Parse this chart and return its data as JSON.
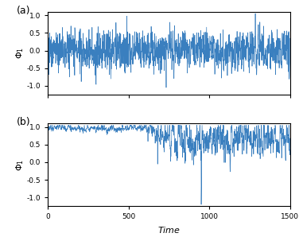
{
  "title_a": "(a)",
  "title_b": "(b)",
  "xlabel": "Time",
  "ylabel": "$\\Phi_1$",
  "xlim": [
    0,
    1500
  ],
  "ylim_a": [
    -1.25,
    1.1
  ],
  "ylim_b": [
    -1.25,
    1.1
  ],
  "xticks": [
    0,
    500,
    1000,
    1500
  ],
  "yticks": [
    -1.0,
    -0.5,
    0.0,
    0.5,
    1.0
  ],
  "line_color": "#3a7fbf",
  "line_width": 0.5,
  "n_points": 1500,
  "figsize": [
    3.76,
    2.98
  ],
  "dpi": 100
}
